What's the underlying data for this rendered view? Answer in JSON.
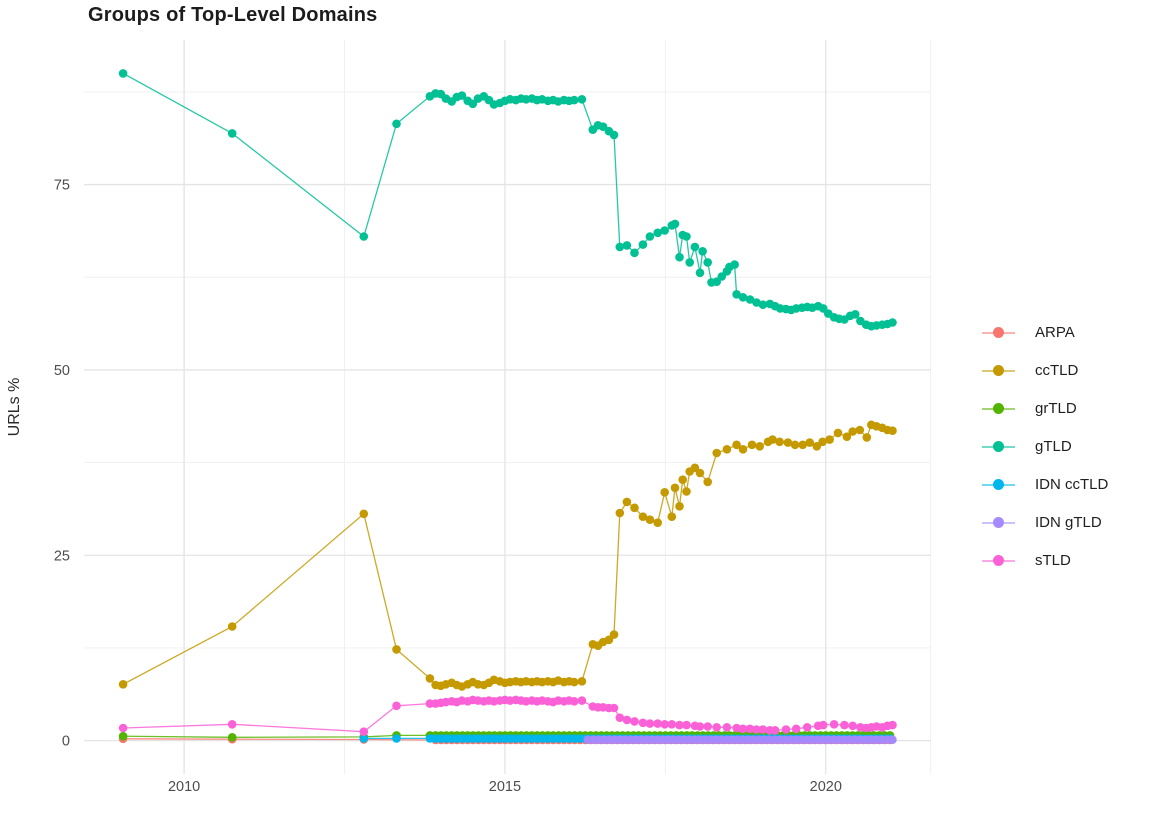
{
  "title": "Groups of Top-Level Domains",
  "chart_data": {
    "type": "line",
    "title": "Groups of Top-Level Domains",
    "xlabel": "",
    "ylabel": "URLs %",
    "x_ticks": [
      2010,
      2015,
      2020
    ],
    "x_tick_labels": [
      "2010",
      "2015",
      "2020"
    ],
    "y_ticks": [
      0,
      25,
      50,
      75
    ],
    "y_tick_labels": [
      "0",
      "25",
      "50",
      "75"
    ],
    "x_minor": [
      2012.5,
      2017.5,
      2021.63
    ],
    "y_minor": [
      12.5,
      37.5,
      62.5,
      87.5
    ],
    "xlim": [
      2008.44,
      2021.64
    ],
    "ylim": [
      -4.5,
      94.5
    ],
    "grid": true,
    "legend_position": "right",
    "grid_major_color": "#e4e4e4",
    "grid_minor_color": "#efefef",
    "axis_text_color": "#4d4d4d",
    "series": [
      {
        "name": "ARPA",
        "color": "#F8766D",
        "points": [
          [
            2009.05,
            0.25
          ],
          [
            2010.75,
            0.2
          ],
          [
            2012.8,
            0.15
          ]
        ],
        "runs": [
          {
            "from": 2013.92,
            "to": 2021.04,
            "step": 0.0833,
            "value": 0.08
          }
        ]
      },
      {
        "name": "ccTLD",
        "color": "#C49A00",
        "points": [
          [
            2009.05,
            7.6
          ],
          [
            2010.75,
            15.4
          ],
          [
            2012.8,
            30.6
          ],
          [
            2013.31,
            12.3
          ],
          [
            2013.83,
            8.4
          ],
          [
            2013.92,
            7.5
          ],
          [
            2014.0,
            7.4
          ],
          [
            2014.08,
            7.6
          ],
          [
            2014.17,
            7.8
          ],
          [
            2014.25,
            7.5
          ],
          [
            2014.33,
            7.3
          ],
          [
            2014.42,
            7.6
          ],
          [
            2014.5,
            7.9
          ],
          [
            2014.58,
            7.6
          ],
          [
            2014.67,
            7.5
          ],
          [
            2014.75,
            7.8
          ],
          [
            2014.83,
            8.2
          ],
          [
            2014.92,
            8.0
          ],
          [
            2015.0,
            7.8
          ],
          [
            2015.08,
            7.9
          ],
          [
            2015.17,
            8.0
          ],
          [
            2015.25,
            7.9
          ],
          [
            2015.33,
            8.0
          ],
          [
            2015.42,
            7.9
          ],
          [
            2015.5,
            8.0
          ],
          [
            2015.58,
            7.9
          ],
          [
            2015.67,
            8.0
          ],
          [
            2015.75,
            7.9
          ],
          [
            2015.83,
            8.1
          ],
          [
            2015.92,
            7.9
          ],
          [
            2016.0,
            8.0
          ],
          [
            2016.08,
            7.9
          ],
          [
            2016.2,
            8.0
          ],
          [
            2016.37,
            13.0
          ],
          [
            2016.45,
            12.8
          ],
          [
            2016.53,
            13.3
          ],
          [
            2016.62,
            13.6
          ],
          [
            2016.7,
            14.3
          ],
          [
            2016.79,
            30.7
          ],
          [
            2016.9,
            32.2
          ],
          [
            2017.02,
            31.4
          ],
          [
            2017.15,
            30.2
          ],
          [
            2017.26,
            29.8
          ],
          [
            2017.38,
            29.4
          ],
          [
            2017.49,
            33.5
          ],
          [
            2017.6,
            30.2
          ],
          [
            2017.65,
            34.1
          ],
          [
            2017.72,
            31.6
          ],
          [
            2017.77,
            35.2
          ],
          [
            2017.83,
            33.6
          ],
          [
            2017.88,
            36.3
          ],
          [
            2017.96,
            36.8
          ],
          [
            2018.04,
            36.1
          ],
          [
            2018.16,
            34.9
          ],
          [
            2018.3,
            38.8
          ],
          [
            2018.46,
            39.3
          ],
          [
            2018.61,
            39.9
          ],
          [
            2018.71,
            39.3
          ],
          [
            2018.85,
            39.9
          ],
          [
            2018.97,
            39.7
          ],
          [
            2019.1,
            40.3
          ],
          [
            2019.17,
            40.6
          ],
          [
            2019.28,
            40.3
          ],
          [
            2019.41,
            40.2
          ],
          [
            2019.52,
            39.9
          ],
          [
            2019.64,
            39.9
          ],
          [
            2019.75,
            40.2
          ],
          [
            2019.86,
            39.7
          ],
          [
            2019.95,
            40.3
          ],
          [
            2020.06,
            40.6
          ],
          [
            2020.19,
            41.5
          ],
          [
            2020.33,
            41.0
          ],
          [
            2020.42,
            41.7
          ],
          [
            2020.53,
            41.9
          ],
          [
            2020.64,
            40.9
          ],
          [
            2020.71,
            42.6
          ],
          [
            2020.79,
            42.4
          ],
          [
            2020.88,
            42.2
          ],
          [
            2020.96,
            41.9
          ],
          [
            2021.04,
            41.8
          ]
        ]
      },
      {
        "name": "grTLD",
        "color": "#53B400",
        "points": [
          [
            2009.05,
            0.6
          ],
          [
            2010.75,
            0.45
          ],
          [
            2012.8,
            0.5
          ],
          [
            2013.31,
            0.7
          ],
          [
            2013.83,
            0.7
          ]
        ],
        "runs": [
          {
            "from": 2013.92,
            "to": 2021.04,
            "step": 0.0833,
            "value": 0.7
          }
        ]
      },
      {
        "name": "gTLD",
        "color": "#00C094",
        "points": [
          [
            2009.05,
            90.0
          ],
          [
            2010.75,
            81.9
          ],
          [
            2012.8,
            68.0
          ],
          [
            2013.31,
            83.2
          ],
          [
            2013.83,
            86.9
          ],
          [
            2013.92,
            87.3
          ],
          [
            2014.0,
            87.2
          ],
          [
            2014.08,
            86.6
          ],
          [
            2014.17,
            86.2
          ],
          [
            2014.25,
            86.8
          ],
          [
            2014.33,
            87.0
          ],
          [
            2014.42,
            86.3
          ],
          [
            2014.5,
            85.9
          ],
          [
            2014.58,
            86.6
          ],
          [
            2014.67,
            86.9
          ],
          [
            2014.75,
            86.4
          ],
          [
            2014.83,
            85.8
          ],
          [
            2014.92,
            86.0
          ],
          [
            2015.0,
            86.3
          ],
          [
            2015.08,
            86.5
          ],
          [
            2015.17,
            86.4
          ],
          [
            2015.25,
            86.6
          ],
          [
            2015.33,
            86.5
          ],
          [
            2015.42,
            86.6
          ],
          [
            2015.5,
            86.4
          ],
          [
            2015.58,
            86.5
          ],
          [
            2015.67,
            86.3
          ],
          [
            2015.75,
            86.4
          ],
          [
            2015.83,
            86.2
          ],
          [
            2015.92,
            86.4
          ],
          [
            2016.0,
            86.3
          ],
          [
            2016.08,
            86.4
          ],
          [
            2016.2,
            86.5
          ],
          [
            2016.37,
            82.4
          ],
          [
            2016.45,
            83.0
          ],
          [
            2016.53,
            82.8
          ],
          [
            2016.62,
            82.2
          ],
          [
            2016.7,
            81.7
          ],
          [
            2016.79,
            66.6
          ],
          [
            2016.9,
            66.8
          ],
          [
            2017.02,
            65.8
          ],
          [
            2017.15,
            66.9
          ],
          [
            2017.26,
            68.0
          ],
          [
            2017.38,
            68.5
          ],
          [
            2017.49,
            68.8
          ],
          [
            2017.6,
            69.5
          ],
          [
            2017.65,
            69.7
          ],
          [
            2017.72,
            65.2
          ],
          [
            2017.77,
            68.2
          ],
          [
            2017.83,
            68.0
          ],
          [
            2017.88,
            64.5
          ],
          [
            2017.96,
            66.6
          ],
          [
            2018.04,
            63.1
          ],
          [
            2018.08,
            66.0
          ],
          [
            2018.16,
            64.5
          ],
          [
            2018.22,
            61.8
          ],
          [
            2018.3,
            61.9
          ],
          [
            2018.38,
            62.6
          ],
          [
            2018.46,
            63.3
          ],
          [
            2018.5,
            63.9
          ],
          [
            2018.58,
            64.2
          ],
          [
            2018.61,
            60.2
          ],
          [
            2018.71,
            59.8
          ],
          [
            2018.82,
            59.5
          ],
          [
            2018.92,
            59.1
          ],
          [
            2019.02,
            58.8
          ],
          [
            2019.13,
            58.9
          ],
          [
            2019.21,
            58.6
          ],
          [
            2019.29,
            58.3
          ],
          [
            2019.38,
            58.2
          ],
          [
            2019.46,
            58.1
          ],
          [
            2019.54,
            58.3
          ],
          [
            2019.63,
            58.4
          ],
          [
            2019.71,
            58.5
          ],
          [
            2019.79,
            58.4
          ],
          [
            2019.88,
            58.6
          ],
          [
            2019.96,
            58.3
          ],
          [
            2020.04,
            57.6
          ],
          [
            2020.13,
            57.1
          ],
          [
            2020.21,
            56.9
          ],
          [
            2020.29,
            56.8
          ],
          [
            2020.38,
            57.3
          ],
          [
            2020.46,
            57.5
          ],
          [
            2020.54,
            56.6
          ],
          [
            2020.63,
            56.1
          ],
          [
            2020.71,
            55.9
          ],
          [
            2020.79,
            56.0
          ],
          [
            2020.88,
            56.1
          ],
          [
            2020.96,
            56.2
          ],
          [
            2021.04,
            56.4
          ]
        ]
      },
      {
        "name": "IDN ccTLD",
        "color": "#00B6EB",
        "points": [
          [
            2012.8,
            0.3
          ],
          [
            2013.31,
            0.3
          ],
          [
            2013.83,
            0.3
          ]
        ],
        "runs": [
          {
            "from": 2013.92,
            "to": 2021.04,
            "step": 0.0833,
            "value": 0.28
          }
        ]
      },
      {
        "name": "IDN gTLD",
        "color": "#A58AFF",
        "points": [],
        "runs": [
          {
            "from": 2016.29,
            "to": 2021.04,
            "step": 0.0833,
            "value": 0.12
          }
        ]
      },
      {
        "name": "sTLD",
        "color": "#FB61D7",
        "points": [
          [
            2009.05,
            1.7
          ],
          [
            2010.75,
            2.2
          ],
          [
            2012.8,
            1.2
          ],
          [
            2013.31,
            4.7
          ],
          [
            2013.83,
            5.0
          ],
          [
            2013.92,
            5.0
          ],
          [
            2014.0,
            5.1
          ],
          [
            2014.08,
            5.2
          ],
          [
            2014.17,
            5.3
          ],
          [
            2014.25,
            5.2
          ],
          [
            2014.33,
            5.4
          ],
          [
            2014.42,
            5.3
          ],
          [
            2014.5,
            5.5
          ],
          [
            2014.58,
            5.4
          ],
          [
            2014.67,
            5.3
          ],
          [
            2014.75,
            5.4
          ],
          [
            2014.83,
            5.3
          ],
          [
            2014.92,
            5.4
          ],
          [
            2015.0,
            5.5
          ],
          [
            2015.08,
            5.4
          ],
          [
            2015.17,
            5.5
          ],
          [
            2015.25,
            5.4
          ],
          [
            2015.33,
            5.3
          ],
          [
            2015.42,
            5.4
          ],
          [
            2015.5,
            5.3
          ],
          [
            2015.58,
            5.4
          ],
          [
            2015.67,
            5.3
          ],
          [
            2015.75,
            5.2
          ],
          [
            2015.83,
            5.4
          ],
          [
            2015.92,
            5.3
          ],
          [
            2016.0,
            5.4
          ],
          [
            2016.08,
            5.3
          ],
          [
            2016.2,
            5.4
          ],
          [
            2016.37,
            4.6
          ],
          [
            2016.45,
            4.5
          ],
          [
            2016.53,
            4.5
          ],
          [
            2016.62,
            4.4
          ],
          [
            2016.7,
            4.4
          ],
          [
            2016.79,
            3.1
          ],
          [
            2016.9,
            2.8
          ],
          [
            2017.02,
            2.6
          ],
          [
            2017.15,
            2.4
          ],
          [
            2017.26,
            2.3
          ],
          [
            2017.38,
            2.3
          ],
          [
            2017.49,
            2.2
          ],
          [
            2017.6,
            2.2
          ],
          [
            2017.72,
            2.1
          ],
          [
            2017.83,
            2.1
          ],
          [
            2017.96,
            2.0
          ],
          [
            2018.04,
            1.9
          ],
          [
            2018.16,
            1.9
          ],
          [
            2018.3,
            1.8
          ],
          [
            2018.46,
            1.8
          ],
          [
            2018.61,
            1.7
          ],
          [
            2018.71,
            1.6
          ],
          [
            2018.82,
            1.6
          ],
          [
            2018.92,
            1.5
          ],
          [
            2019.02,
            1.5
          ],
          [
            2019.13,
            1.4
          ],
          [
            2019.21,
            1.4
          ],
          [
            2019.38,
            1.5
          ],
          [
            2019.54,
            1.6
          ],
          [
            2019.71,
            1.8
          ],
          [
            2019.88,
            2.0
          ],
          [
            2019.96,
            2.1
          ],
          [
            2020.13,
            2.2
          ],
          [
            2020.29,
            2.1
          ],
          [
            2020.42,
            2.0
          ],
          [
            2020.54,
            1.8
          ],
          [
            2020.63,
            1.7
          ],
          [
            2020.71,
            1.8
          ],
          [
            2020.79,
            1.9
          ],
          [
            2020.88,
            1.8
          ],
          [
            2020.96,
            2.0
          ],
          [
            2021.04,
            2.1
          ]
        ]
      }
    ],
    "legend_labels": [
      "ARPA",
      "ccTLD",
      "grTLD",
      "gTLD",
      "IDN ccTLD",
      "IDN gTLD",
      "sTLD"
    ]
  }
}
